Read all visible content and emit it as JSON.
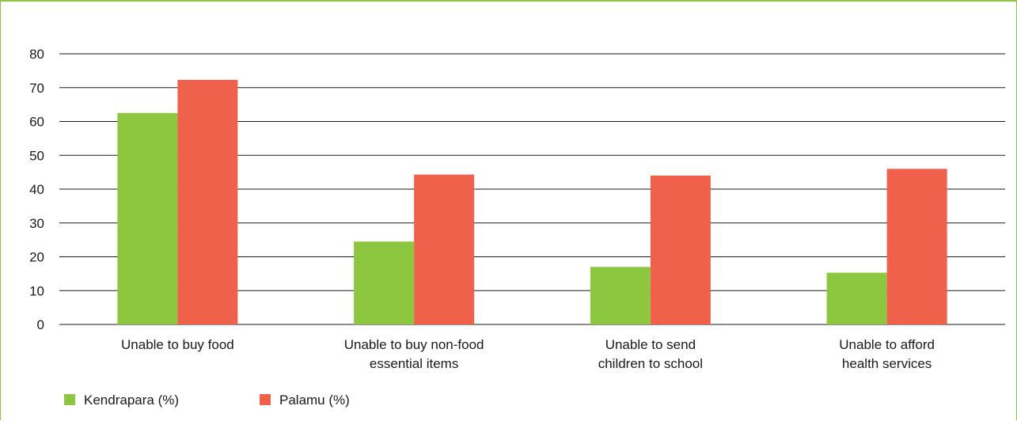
{
  "chart_data": {
    "type": "bar",
    "categories": [
      [
        "Unable to buy food"
      ],
      [
        "Unable to buy non-food",
        "essential items"
      ],
      [
        "Unable to send",
        "children to school"
      ],
      [
        "Unable to afford",
        "health services"
      ]
    ],
    "series": [
      {
        "name": "Kendrapara (%)",
        "color": "#8dc63f",
        "values": [
          62.5,
          24.5,
          17,
          15.3
        ]
      },
      {
        "name": "Palamu (%)",
        "color": "#f0614b",
        "values": [
          72.3,
          44.3,
          44,
          46
        ]
      }
    ],
    "ylim": [
      0,
      80
    ],
    "yticks": [
      0,
      10,
      20,
      30,
      40,
      50,
      60,
      70,
      80
    ],
    "grid": true,
    "legend_position": "bottom-left",
    "title": "",
    "xlabel": "",
    "ylabel": ""
  }
}
